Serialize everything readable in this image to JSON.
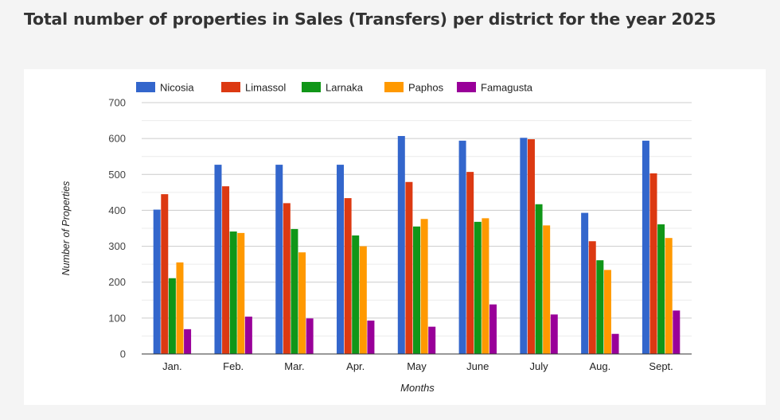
{
  "page": {
    "title": "Total number of properties in Sales (Transfers) per district for the year 2025"
  },
  "chart_data": {
    "type": "bar",
    "title": "Total number of properties in Sales (Transfers) per district for the year 2025",
    "xlabel": "Months",
    "ylabel": "Number of Properties",
    "ylim": [
      0,
      700
    ],
    "yticks": [
      0,
      100,
      200,
      300,
      400,
      500,
      600,
      700
    ],
    "grid": true,
    "legend_position": "top",
    "categories": [
      "Jan.",
      "Feb.",
      "Mar.",
      "Apr.",
      "May",
      "June",
      "July",
      "Aug.",
      "Sept."
    ],
    "series": [
      {
        "name": "Nicosia",
        "color": "#3366cc",
        "values": [
          402,
          527,
          527,
          527,
          607,
          594,
          602,
          393,
          594
        ]
      },
      {
        "name": "Limassol",
        "color": "#dc3912",
        "values": [
          445,
          467,
          420,
          434,
          479,
          507,
          598,
          314,
          503
        ]
      },
      {
        "name": "Larnaka",
        "color": "#109618",
        "values": [
          211,
          341,
          348,
          330,
          355,
          368,
          417,
          261,
          361
        ]
      },
      {
        "name": "Paphos",
        "color": "#ff9900",
        "values": [
          255,
          337,
          283,
          300,
          376,
          378,
          358,
          234,
          323
        ]
      },
      {
        "name": "Famagusta",
        "color": "#990099",
        "values": [
          69,
          104,
          99,
          93,
          76,
          138,
          110,
          56,
          121
        ]
      }
    ]
  }
}
